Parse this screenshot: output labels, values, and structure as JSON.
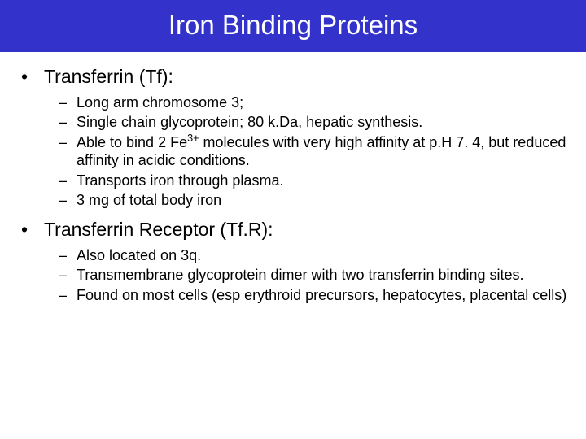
{
  "title": "Iron Binding Proteins",
  "colors": {
    "title_bg": "#3333cc",
    "title_fg": "#ffffff",
    "body_bg": "#ffffff",
    "text": "#000000"
  },
  "typography": {
    "title_fontsize": 33,
    "main_fontsize": 23,
    "sub_fontsize": 18,
    "font_family": "Arial"
  },
  "sections": [
    {
      "heading": "Transferrin (Tf):",
      "points": [
        "Long arm chromosome 3;",
        "Single chain glycoprotein; 80 k.Da, hepatic synthesis.",
        "Able to bind 2 Fe<sup>3+</sup> molecules with very high affinity at p.H 7. 4, but reduced affinity in acidic conditions.",
        "Transports iron through plasma.",
        "3 mg of total body iron"
      ]
    },
    {
      "heading": "Transferrin Receptor (Tf.R):",
      "points": [
        "Also located on 3q.",
        "Transmembrane glycoprotein dimer with two transferrin binding sites.",
        "Found on most cells (esp erythroid precursors, hepatocytes, placental cells)"
      ]
    }
  ]
}
